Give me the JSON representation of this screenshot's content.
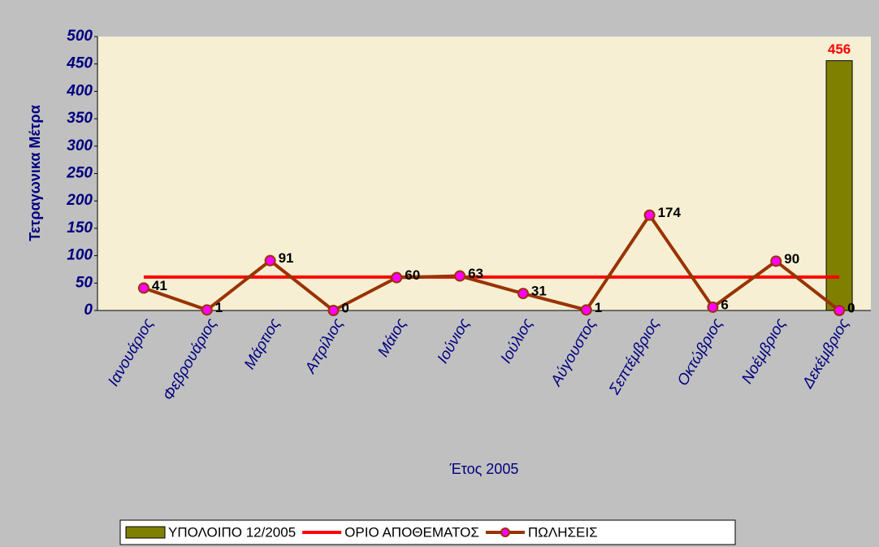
{
  "chart_data": {
    "type": "combo",
    "categories": [
      "Ιανουάριος",
      "Φεβρουάριος",
      "Μάρτιος",
      "Απρίλιος",
      "Μάιος",
      "Ιούνιος",
      "Ιούλιος",
      "Αύγουστος",
      "Σεπτέμβριος",
      "Οκτώβριος",
      "Νοέμβριος",
      "Δεκέμβριος"
    ],
    "series": [
      {
        "name": "ΥΠΟΛΟΙΠΟ 12/2005",
        "type": "bar",
        "color": "#808000",
        "label_color": "#ff0000",
        "data_labels": true,
        "values": [
          null,
          null,
          null,
          null,
          null,
          null,
          null,
          null,
          null,
          null,
          null,
          456
        ]
      },
      {
        "name": "ΟΡΙΟ ΑΠΟΘΕΜΑΤΟΣ",
        "type": "line",
        "color": "#ff0000",
        "data_labels": false,
        "values": [
          61,
          61,
          61,
          61,
          61,
          61,
          61,
          61,
          61,
          61,
          61,
          61
        ]
      },
      {
        "name": "ΠΩΛΗΣΕΙΣ",
        "type": "line",
        "color": "#993300",
        "marker_color": "#ff00ff",
        "label_color": "#000000",
        "data_labels": true,
        "values": [
          41,
          1,
          91,
          0,
          60,
          63,
          31,
          1,
          174,
          6,
          90,
          0
        ]
      }
    ],
    "ylabel": "Τετραγωνικα Μέτρα",
    "xlabel": "Έτος 2005",
    "ylim": [
      0,
      500
    ],
    "yticks": [
      0,
      50,
      100,
      150,
      200,
      250,
      300,
      350,
      400,
      450,
      500
    ],
    "grid": false,
    "legend": "bottom"
  }
}
